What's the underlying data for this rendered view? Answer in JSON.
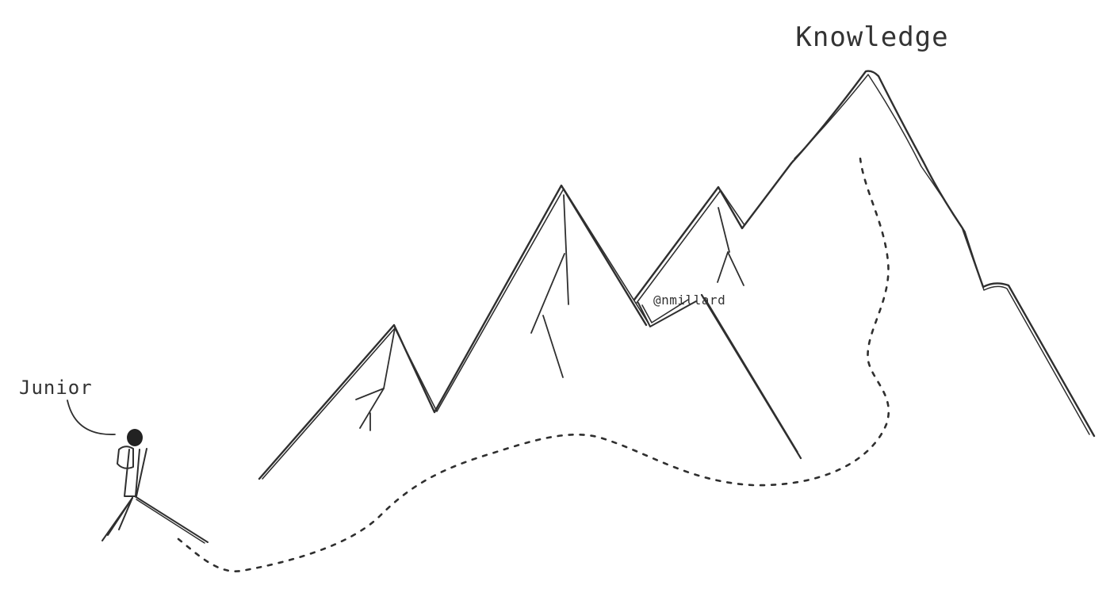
{
  "labels": {
    "summit": "Knowledge",
    "hiker": "Junior",
    "credit": "@nmillard"
  },
  "colors": {
    "background": "#ffffff",
    "ink": "#2f2f2f"
  },
  "icons": {
    "hiker": "hiker-icon",
    "mountains": "mountain-range-icon"
  }
}
